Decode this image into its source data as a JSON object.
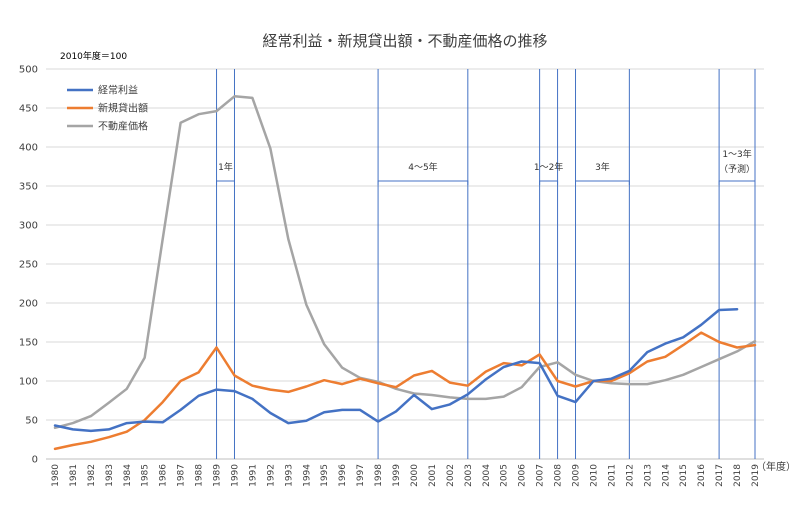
{
  "chart_data": {
    "type": "line",
    "title": "経常利益・新規貸出額・不動産価格の推移",
    "base_note": "2010年度＝100",
    "xlabel": "（年度）",
    "ylabel": "",
    "ylim": [
      0,
      500
    ],
    "yticks": [
      "0",
      "50",
      "100",
      "150",
      "200",
      "250",
      "300",
      "350",
      "400",
      "450",
      "500"
    ],
    "grid": true,
    "legend_position": "top-left",
    "x": [
      "1980",
      "1981",
      "1982",
      "1983",
      "1984",
      "1985",
      "1986",
      "1987",
      "1988",
      "1989",
      "1990",
      "1991",
      "1992",
      "1993",
      "1994",
      "1995",
      "1996",
      "1997",
      "1998",
      "1999",
      "2000",
      "2001",
      "2002",
      "2003",
      "2004",
      "2005",
      "2006",
      "2007",
      "2008",
      "2009",
      "2010",
      "2011",
      "2012",
      "2013",
      "2014",
      "2015",
      "2016",
      "2017",
      "2018",
      "2019"
    ],
    "series": [
      {
        "name": "経常利益",
        "color": "#4472C4",
        "values": [
          43,
          38,
          36,
          38,
          46,
          48,
          47,
          63,
          81,
          89,
          87,
          77,
          59,
          46,
          49,
          60,
          63,
          63,
          48,
          61,
          82,
          64,
          70,
          83,
          102,
          118,
          125,
          123,
          81,
          73,
          100,
          103,
          113,
          137,
          148,
          156,
          172,
          191,
          192,
          null
        ]
      },
      {
        "name": "新規貸出額",
        "color": "#ED7D31",
        "values": [
          13,
          18,
          22,
          28,
          35,
          50,
          73,
          100,
          111,
          143,
          107,
          94,
          89,
          86,
          93,
          101,
          96,
          103,
          97,
          92,
          107,
          113,
          98,
          94,
          112,
          123,
          120,
          134,
          100,
          93,
          100,
          100,
          110,
          125,
          131,
          146,
          162,
          150,
          143,
          146
        ]
      },
      {
        "name": "不動産価格",
        "color": "#A5A5A5",
        "values": [
          40,
          46,
          55,
          72,
          90,
          130,
          282,
          431,
          442,
          446,
          465,
          463,
          398,
          282,
          198,
          147,
          117,
          104,
          99,
          90,
          84,
          82,
          79,
          77,
          77,
          80,
          92,
          118,
          124,
          108,
          100,
          97,
          96,
          96,
          101,
          108,
          118,
          128,
          138,
          151
        ]
      }
    ],
    "periods": [
      {
        "label": "1年",
        "sub": "",
        "start": "1989",
        "end": "1990"
      },
      {
        "label": "4～5年",
        "sub": "",
        "start": "1998",
        "end": "2003"
      },
      {
        "label": "1～2年",
        "sub": "",
        "start": "2007",
        "end": "2008"
      },
      {
        "label": "3年",
        "sub": "",
        "start": "2009",
        "end": "2012"
      },
      {
        "label": "1～3年",
        "sub": "（予測）",
        "start": "2017",
        "end": "2019"
      }
    ]
  }
}
